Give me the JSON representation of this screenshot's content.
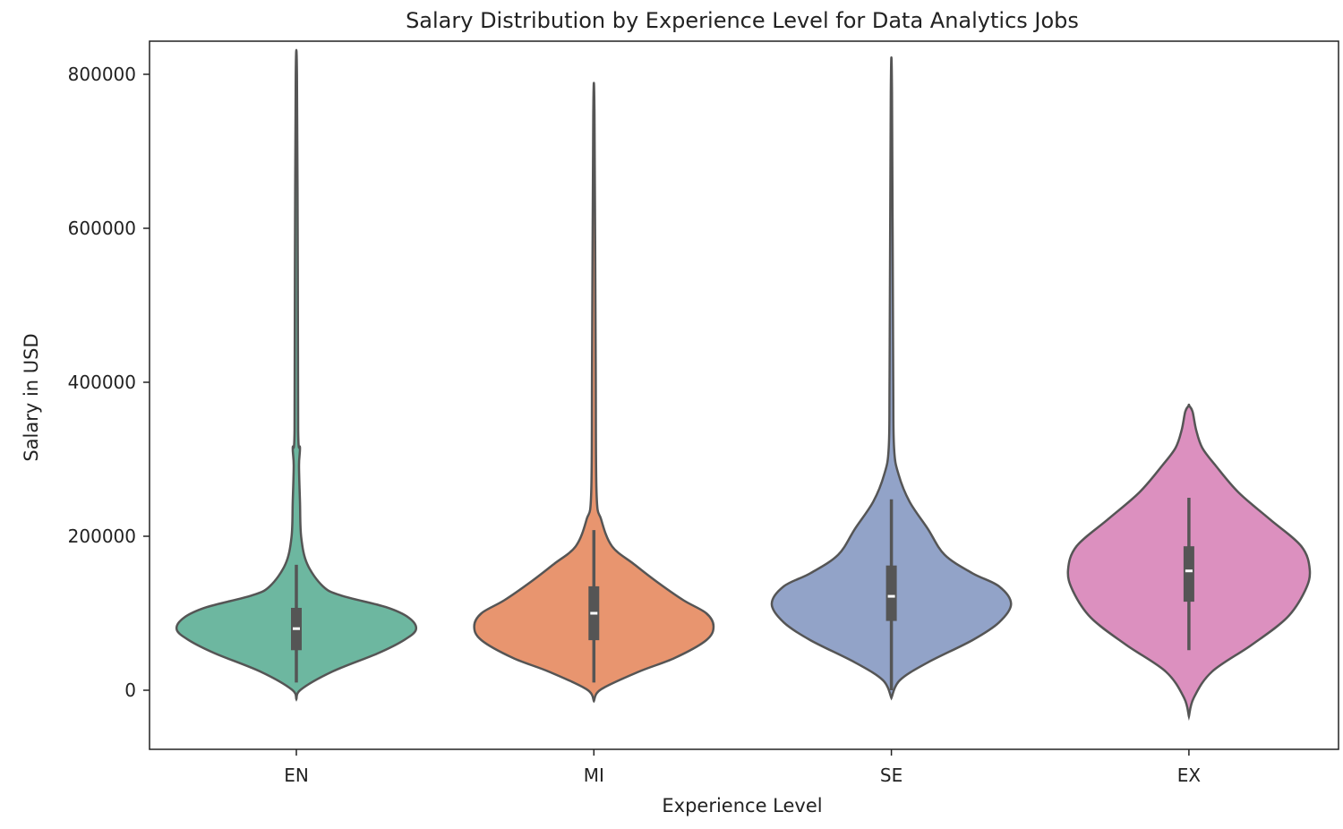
{
  "chart_data": {
    "type": "violin",
    "title": "Salary Distribution by Experience Level for Data Analytics Jobs",
    "xlabel": "Experience Level",
    "ylabel": "Salary in USD",
    "ylim": [
      -80000,
      880000
    ],
    "yticks": [
      0,
      200000,
      400000,
      600000,
      800000
    ],
    "ytick_labels": [
      "0",
      "200000",
      "400000",
      "600000",
      "800000"
    ],
    "categories": [
      "EN",
      "MI",
      "SE",
      "EX"
    ],
    "colors": [
      "#6db7a0",
      "#e8956f",
      "#92a3c8",
      "#dc90bf"
    ],
    "edge_color": "#555555",
    "violins": [
      {
        "name": "EN",
        "min": 10000,
        "q1": 52000,
        "median": 80000,
        "q3": 107000,
        "max": 163000,
        "density": [
          [
            -11600,
            0
          ],
          [
            1200,
            0.04
          ],
          [
            24400,
            0.3
          ],
          [
            47700,
            0.67
          ],
          [
            65100,
            0.89
          ],
          [
            79000,
            0.99
          ],
          [
            94200,
            0.93
          ],
          [
            108000,
            0.74
          ],
          [
            123000,
            0.37
          ],
          [
            135000,
            0.22
          ],
          [
            164000,
            0.09
          ],
          [
            199000,
            0.04
          ],
          [
            245000,
            0.03
          ],
          [
            292000,
            0.022
          ],
          [
            315000,
            0.03
          ],
          [
            338000,
            0.015
          ],
          [
            548000,
            0.012
          ],
          [
            800000,
            0.005
          ]
        ]
      },
      {
        "name": "MI",
        "min": 10000,
        "q1": 65000,
        "median": 100000,
        "q3": 135000,
        "max": 208000,
        "density": [
          [
            -14000,
            0
          ],
          [
            1200,
            0.06
          ],
          [
            24000,
            0.37
          ],
          [
            42000,
            0.67
          ],
          [
            65000,
            0.93
          ],
          [
            83000,
            0.99
          ],
          [
            100000,
            0.93
          ],
          [
            117000,
            0.74
          ],
          [
            141000,
            0.52
          ],
          [
            164000,
            0.33
          ],
          [
            187000,
            0.15
          ],
          [
            222000,
            0.06
          ],
          [
            257000,
            0.022
          ],
          [
            431000,
            0.015
          ],
          [
            749000,
            0.005
          ]
        ]
      },
      {
        "name": "SE",
        "min": 0,
        "q1": 90000,
        "median": 122000,
        "q3": 162000,
        "max": 248000,
        "density": [
          [
            -10000,
            0
          ],
          [
            13000,
            0.07
          ],
          [
            36000,
            0.3
          ],
          [
            65000,
            0.67
          ],
          [
            88000,
            0.89
          ],
          [
            112000,
            0.99
          ],
          [
            135000,
            0.89
          ],
          [
            152000,
            0.67
          ],
          [
            176000,
            0.44
          ],
          [
            210000,
            0.3
          ],
          [
            245000,
            0.15
          ],
          [
            280000,
            0.06
          ],
          [
            315000,
            0.022
          ],
          [
            408000,
            0.015
          ],
          [
            776000,
            0.005
          ]
        ]
      },
      {
        "name": "EX",
        "min": 52000,
        "q1": 115000,
        "median": 155000,
        "q3": 187000,
        "max": 250000,
        "density": [
          [
            -34000,
            0
          ],
          [
            -10000,
            0.04
          ],
          [
            24000,
            0.19
          ],
          [
            59000,
            0.52
          ],
          [
            94000,
            0.81
          ],
          [
            129000,
            0.96
          ],
          [
            156000,
            1.0
          ],
          [
            187000,
            0.93
          ],
          [
            222000,
            0.67
          ],
          [
            257000,
            0.41
          ],
          [
            292000,
            0.22
          ],
          [
            315000,
            0.11
          ],
          [
            338000,
            0.06
          ],
          [
            362000,
            0.03
          ],
          [
            370000,
            0
          ]
        ]
      }
    ]
  }
}
